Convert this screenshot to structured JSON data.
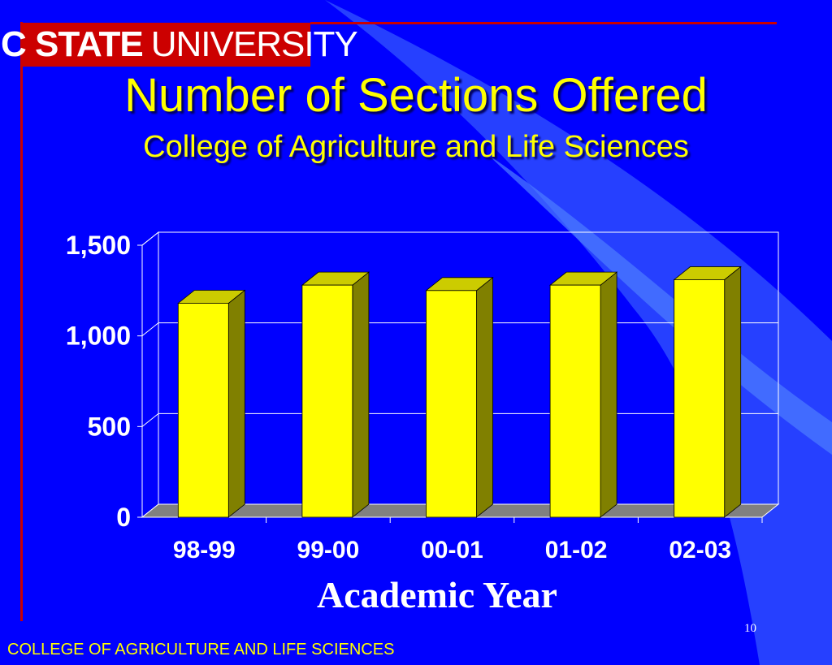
{
  "header": {
    "logo_bold": "NC STATE",
    "logo_light": "UNIVERSITY",
    "title": "Number of Sections Offered",
    "subtitle": "College of Agriculture and Life Sciences"
  },
  "footer": {
    "college": "COLLEGE OF AGRICULTURE AND LIFE SCIENCES",
    "page_number": "10"
  },
  "colors": {
    "background": "#0000ff",
    "bar_front": "#ffff00",
    "bar_side": "#808000",
    "bar_top": "#cccc00",
    "title": "#ffff00",
    "accent_red": "#cc0000"
  },
  "chart_data": {
    "type": "bar",
    "categories": [
      "98-99",
      "99-00",
      "00-01",
      "01-02",
      "02-03"
    ],
    "values": [
      1180,
      1280,
      1250,
      1280,
      1310
    ],
    "yticks": [
      0,
      500,
      1000,
      1500
    ],
    "ytick_labels": [
      "0",
      "500",
      "1,000",
      "1,500"
    ],
    "ylim": [
      0,
      1500
    ],
    "xlabel": "Academic Year",
    "ylabel": "",
    "grid": true,
    "legend": "none"
  }
}
